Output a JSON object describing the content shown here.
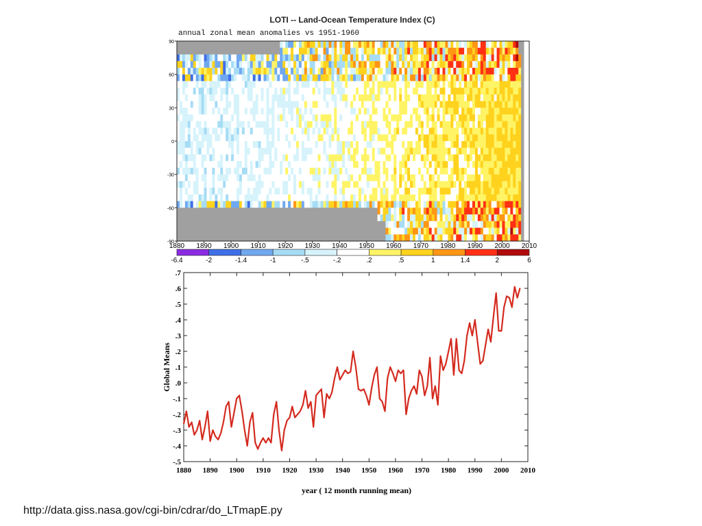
{
  "title": "LOTI -- Land-Ocean Temperature Index (C)",
  "subtitle": "annual zonal mean anomalies vs 1951-1960",
  "footer_url": "http://data.giss.nasa.gov/cgi-bin/cdrar/do_LTmapE.py",
  "chart_data": [
    {
      "type": "heatmap",
      "xlim": [
        1880,
        2010
      ],
      "ylim": [
        -90,
        90
      ],
      "x_ticks": [
        "1880",
        "1890",
        "1900",
        "1910",
        "1920",
        "1930",
        "1940",
        "1950",
        "1960",
        "1970",
        "1980",
        "1990",
        "2000",
        "2010"
      ],
      "y_ticks": [
        "90",
        "60",
        "30",
        "0",
        "-30",
        "-60",
        "-90"
      ],
      "colorbar": {
        "ticks": [
          "-6.4",
          "-2",
          "-1.4",
          "-1",
          "-.5",
          "-.2",
          ".2",
          ".5",
          "1",
          "1.4",
          "2",
          "6"
        ],
        "colors": [
          "#8a2be2",
          "#3f6fe6",
          "#70a8f0",
          "#a6dcf5",
          "#d6f3fb",
          "#ffffff",
          "#fff466",
          "#ffd21e",
          "#ff9614",
          "#ff3014",
          "#b00b0b"
        ]
      },
      "missing_color": "#a0a0a0",
      "grid": false
    },
    {
      "type": "line",
      "xlabel": "year ( 12 month running mean)",
      "ylabel": "Global Means",
      "xlim": [
        1880,
        2010
      ],
      "ylim": [
        -0.5,
        0.7
      ],
      "x_ticks": [
        "1880",
        "1890",
        "1900",
        "1910",
        "1920",
        "1930",
        "1940",
        "1950",
        "1960",
        "1970",
        "1980",
        "1990",
        "2000",
        "2010"
      ],
      "y_ticks": [
        ".7",
        ".6",
        ".5",
        ".4",
        ".3",
        ".2",
        ".1",
        ".0",
        "-.1",
        "-.2",
        "-.3",
        "-.4",
        "-.5"
      ],
      "line_color": "#d42a1e",
      "series": [
        {
          "x": [
            1880,
            1881,
            1882,
            1883,
            1884,
            1885,
            1886,
            1887,
            1888,
            1889,
            1890,
            1891,
            1892,
            1893,
            1894,
            1895,
            1896,
            1897,
            1898,
            1899,
            1900,
            1901,
            1902,
            1903,
            1904,
            1905,
            1906,
            1907,
            1908,
            1909,
            1910,
            1911,
            1912,
            1913,
            1914,
            1915,
            1916,
            1917,
            1918,
            1919,
            1920,
            1921,
            1922,
            1923,
            1924,
            1925,
            1926,
            1927,
            1928,
            1929,
            1930,
            1931,
            1932,
            1933,
            1934,
            1935,
            1936,
            1937,
            1938,
            1939,
            1940,
            1941,
            1942,
            1943,
            1944,
            1945,
            1946,
            1947,
            1948,
            1949,
            1950,
            1951,
            1952,
            1953,
            1954,
            1955,
            1956,
            1957,
            1958,
            1959,
            1960,
            1961,
            1962,
            1963,
            1964,
            1965,
            1966,
            1967,
            1968,
            1969,
            1970,
            1971,
            1972,
            1973,
            1974,
            1975,
            1976,
            1977,
            1978,
            1979,
            1980,
            1981,
            1982,
            1983,
            1984,
            1985,
            1986,
            1987,
            1988,
            1989,
            1990,
            1991,
            1992,
            1993,
            1994,
            1995,
            1996,
            1997,
            1998,
            1999,
            2000,
            2001,
            2002,
            2003,
            2004,
            2005,
            2006,
            2007
          ],
          "y": [
            -0.26,
            -0.18,
            -0.28,
            -0.25,
            -0.33,
            -0.3,
            -0.24,
            -0.36,
            -0.28,
            -0.18,
            -0.37,
            -0.3,
            -0.34,
            -0.36,
            -0.32,
            -0.25,
            -0.15,
            -0.12,
            -0.28,
            -0.19,
            -0.1,
            -0.08,
            -0.18,
            -0.3,
            -0.4,
            -0.25,
            -0.19,
            -0.38,
            -0.42,
            -0.38,
            -0.35,
            -0.38,
            -0.35,
            -0.38,
            -0.2,
            -0.12,
            -0.3,
            -0.43,
            -0.3,
            -0.24,
            -0.22,
            -0.15,
            -0.22,
            -0.2,
            -0.18,
            -0.14,
            -0.05,
            -0.16,
            -0.12,
            -0.28,
            -0.08,
            -0.06,
            -0.04,
            -0.22,
            -0.07,
            -0.1,
            -0.06,
            0.03,
            0.1,
            0.02,
            0.05,
            0.08,
            0.06,
            0.07,
            0.2,
            0.1,
            -0.04,
            -0.05,
            -0.04,
            -0.08,
            -0.14,
            -0.03,
            0.05,
            0.1,
            -0.1,
            -0.12,
            -0.18,
            0.03,
            0.1,
            0.06,
            0.01,
            0.08,
            0.06,
            0.08,
            -0.2,
            -0.1,
            -0.05,
            -0.02,
            -0.07,
            0.08,
            0.04,
            -0.08,
            -0.02,
            0.16,
            -0.1,
            -0.02,
            -0.14,
            0.17,
            0.08,
            0.12,
            0.2,
            0.28,
            0.05,
            0.28,
            0.08,
            0.06,
            0.14,
            0.3,
            0.38,
            0.3,
            0.4,
            0.26,
            0.12,
            0.14,
            0.24,
            0.34,
            0.26,
            0.42,
            0.57,
            0.33,
            0.33,
            0.48,
            0.55,
            0.54,
            0.48,
            0.61,
            0.54,
            0.6
          ]
        }
      ]
    }
  ]
}
